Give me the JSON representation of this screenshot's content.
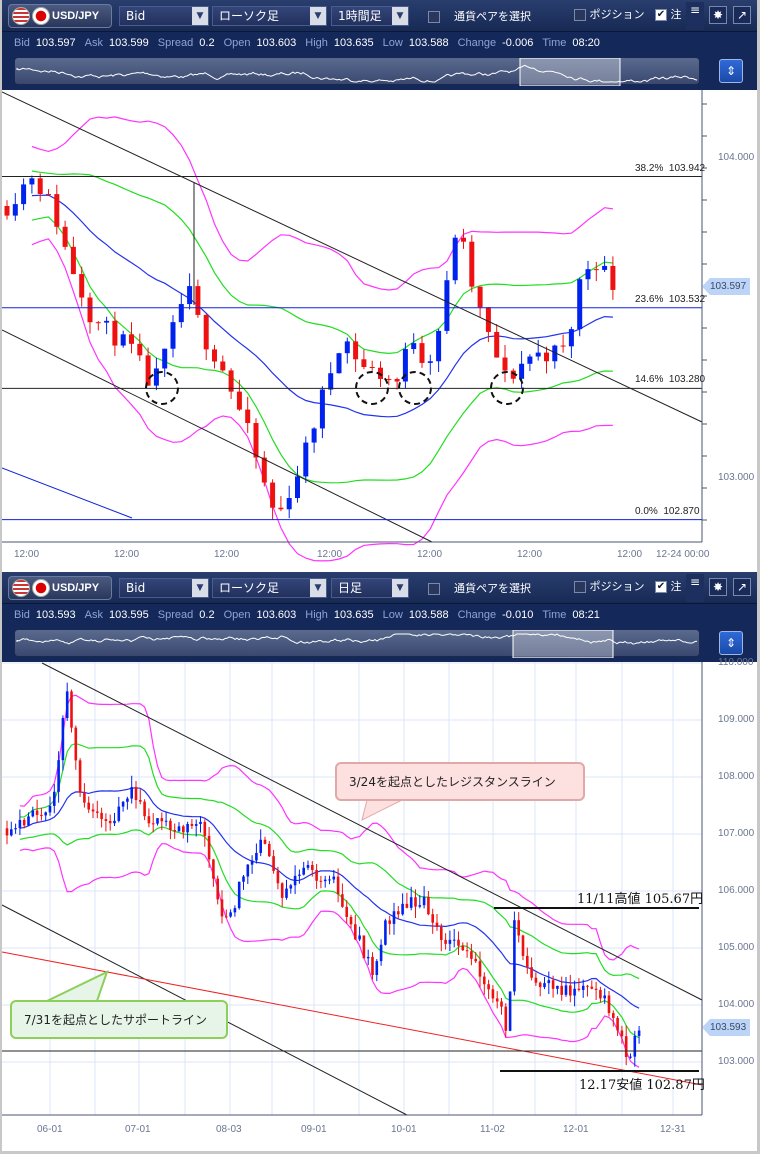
{
  "panels": [
    {
      "toolbar": {
        "symbol": "USD/JPY",
        "price_type": "Bid",
        "chart_type": "ローソク足",
        "timeframe": "1時間足",
        "pair_select_label": "通貨ペアを選択",
        "position_label": "ポジション",
        "position_checked": false,
        "order_label": "注",
        "order_checked": true
      },
      "quote": {
        "Bid": "103.597",
        "Ask": "103.599",
        "Spread": "0.2",
        "Open": "103.603",
        "High": "103.635",
        "Low": "103.588",
        "Change": "-0.006",
        "Time": "08:20"
      },
      "current_price_tag": "103.597",
      "y_ticks": [
        "104.000",
        "103.000"
      ],
      "x_ticks": [
        "12:00",
        "12:00",
        "12:00",
        "12:00",
        "12:00",
        "12:00",
        "12:00",
        "12-24 00:00"
      ],
      "fib_levels": [
        {
          "pct": "38.2%",
          "price": "103.942"
        },
        {
          "pct": "23.6%",
          "price": "103.532"
        },
        {
          "pct": "14.6%",
          "price": "103.280"
        },
        {
          "pct": "0.0%",
          "price": "102.870"
        }
      ]
    },
    {
      "toolbar": {
        "symbol": "USD/JPY",
        "price_type": "Bid",
        "chart_type": "ローソク足",
        "timeframe": "日足",
        "pair_select_label": "通貨ペアを選択",
        "position_label": "ポジション",
        "position_checked": false,
        "order_label": "注",
        "order_checked": true
      },
      "quote": {
        "Bid": "103.593",
        "Ask": "103.595",
        "Spread": "0.2",
        "Open": "103.603",
        "High": "103.635",
        "Low": "103.588",
        "Change": "-0.010",
        "Time": "08:21"
      },
      "current_price_tag": "103.593",
      "y_ticks": [
        "110.000",
        "109.000",
        "108.000",
        "107.000",
        "106.000",
        "105.000",
        "104.000",
        "103.000"
      ],
      "x_ticks": [
        "06-01",
        "07-01",
        "08-03",
        "09-01",
        "10-01",
        "11-02",
        "12-01",
        "12-31"
      ],
      "annotations": {
        "resistance": "3/24を起点としたレジスタンスライン",
        "support": "7/31を起点としたサポートライン",
        "high": "11/11高値 105.67円",
        "low": "12.17安値 102.87円"
      }
    }
  ],
  "colors": {
    "up": "#0022ee",
    "down": "#ee1111",
    "ma": "#2233ee",
    "band1": "#22dd22",
    "band2": "#ff33ff",
    "toolbar": "#1c2f5e"
  },
  "icons": [
    "flag-us-icon",
    "flag-jp-icon",
    "chevron-down-icon",
    "checkbox-icon",
    "menu-icon",
    "gear-icon",
    "popout-arrow-icon",
    "scale-toggle-icon"
  ]
}
